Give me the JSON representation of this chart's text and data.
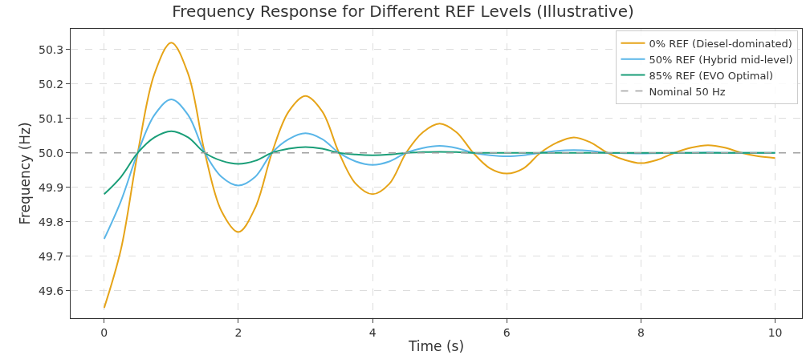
{
  "chart_data": {
    "type": "line",
    "title": "Frequency Response for Different REF Levels (Illustrative)",
    "xlabel": "Time (s)",
    "ylabel": "Frequency (Hz)",
    "x": [
      0,
      0.25,
      0.5,
      0.75,
      1,
      1.25,
      1.5,
      1.75,
      2,
      2.25,
      2.5,
      2.75,
      3,
      3.25,
      3.5,
      3.75,
      4,
      4.25,
      4.5,
      4.75,
      5,
      5.25,
      5.5,
      5.75,
      6,
      6.25,
      6.5,
      6.75,
      7,
      7.25,
      7.5,
      7.75,
      8,
      8.25,
      8.5,
      8.75,
      9,
      9.25,
      9.5,
      9.75,
      10
    ],
    "series": [
      {
        "name": "0% REF (Diesel-dominated)",
        "color": "#e6a418",
        "values": [
          49.55,
          49.72,
          50.0,
          50.23,
          50.32,
          50.23,
          50.0,
          49.83,
          49.77,
          49.84,
          50.0,
          50.12,
          50.165,
          50.12,
          50.0,
          49.91,
          49.88,
          49.91,
          50.0,
          50.06,
          50.085,
          50.06,
          50.0,
          49.955,
          49.94,
          49.955,
          50.0,
          50.03,
          50.045,
          50.03,
          50.0,
          49.98,
          49.97,
          49.98,
          50.0,
          50.015,
          50.022,
          50.015,
          50.0,
          49.99,
          49.985
        ]
      },
      {
        "name": "50% REF (Hybrid mid-level)",
        "color": "#5ab6e8",
        "values": [
          49.75,
          49.86,
          50.0,
          50.11,
          50.155,
          50.11,
          50.0,
          49.93,
          49.905,
          49.93,
          50.0,
          50.04,
          50.057,
          50.04,
          50.0,
          49.975,
          49.965,
          49.975,
          50.0,
          50.014,
          50.02,
          50.014,
          50.0,
          49.993,
          49.99,
          49.993,
          50.0,
          50.006,
          50.008,
          50.006,
          50.0,
          49.999,
          49.998,
          49.999,
          50.0,
          50.0,
          50.001,
          50.0,
          50.0,
          50.0,
          50.0
        ]
      },
      {
        "name": "85% REF (EVO Optimal)",
        "color": "#1a9e78",
        "values": [
          49.88,
          49.93,
          50.0,
          50.045,
          50.063,
          50.045,
          50.0,
          49.977,
          49.968,
          49.977,
          50.0,
          50.012,
          50.017,
          50.012,
          50.0,
          49.995,
          49.993,
          49.995,
          50.0,
          50.002,
          50.003,
          50.002,
          50.0,
          50.0,
          50.0,
          50.0,
          50.0,
          50.0,
          50.0,
          50.0,
          50.0,
          50.0,
          50.0,
          50.0,
          50.0,
          50.0,
          50.0,
          50.0,
          50.0,
          50.0,
          50.0
        ]
      }
    ],
    "ref_lines": [
      {
        "axis": "y",
        "value": 50.0,
        "label": "Nominal 50 Hz",
        "color": "#a0a0a0",
        "line_style": "dashed"
      }
    ],
    "xlim": [
      -0.5,
      10.4
    ],
    "ylim": [
      49.52,
      50.36
    ],
    "xticks": [
      0,
      2,
      4,
      6,
      8,
      10
    ],
    "yticks": [
      {
        "value": 49.6,
        "label": "49.6"
      },
      {
        "value": 49.7,
        "label": "49.7"
      },
      {
        "value": 49.8,
        "label": "49.8"
      },
      {
        "value": 49.9,
        "label": "49.9"
      },
      {
        "value": 50.0,
        "label": "50.0"
      },
      {
        "value": 50.1,
        "label": "50.1"
      },
      {
        "value": 50.2,
        "label": "50.2"
      },
      {
        "value": 50.3,
        "label": "50.3"
      }
    ],
    "grid": true,
    "legend": "top right",
    "line_style": "solid",
    "marker": "none"
  }
}
